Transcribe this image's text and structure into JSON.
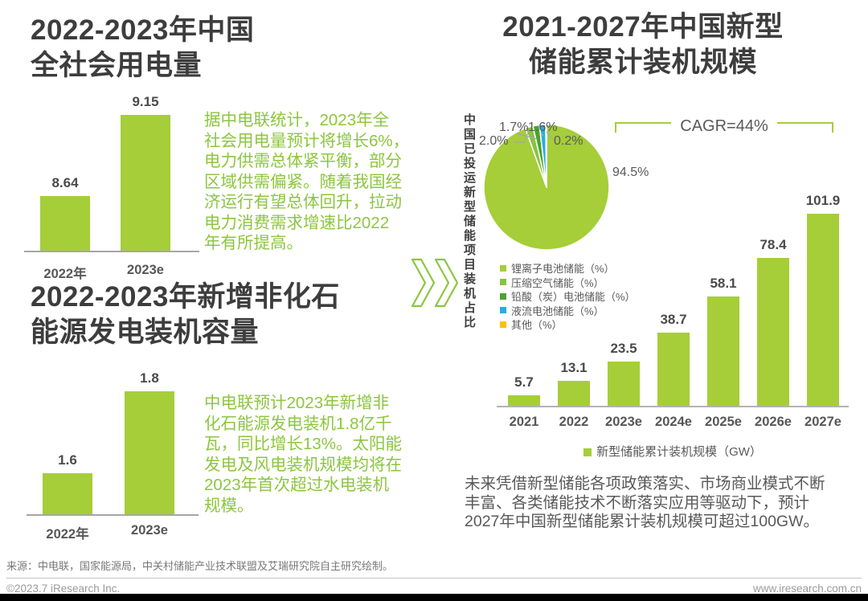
{
  "left": {
    "chart1": {
      "title": "2022-2023年中国\n全社会用电量",
      "note": "据中电联统计，2023年全\n社会用电量预计将增长6%，\n电力供需总体紧平衡，部分\n区域供需偏紧。随着我国经\n济运行有望总体回升，拉动\n电力消费需求增速比2022\n年有所提高。"
    },
    "chart2": {
      "title": "2022-2023年新增非化石\n能源发电装机容量",
      "note": "中电联预计2023年新增非\n化石能源发电装机1.8亿千\n瓦，同比增长13%。太阳能\n发电及风电装机规模均将在\n2023年首次超过水电装机\n规模。"
    }
  },
  "right": {
    "title": "2021-2027年中国新型\n储能累计装机规模",
    "note": "未来凭借新型储能各项政策落实、市场商业模式不断\n丰富、各类储能技术不断落实应用等驱动下，预计\n2027年中国新型储能累计装机规模可超过100GW。"
  },
  "footer": {
    "source": "来源：中电联，国家能源局，中关村储能产业技术联盟及艾瑞研究院自主研究绘制。",
    "copyright": "©2023.7 iResearch Inc.",
    "website": "www.iresearch.com.cn"
  },
  "colors": {
    "accent_green": "#a5ce39",
    "note_green": "#8cc63f",
    "title_gray": "#3d3d3d",
    "label_gray": "#595959"
  },
  "chart_data": [
    {
      "type": "bar",
      "title": "2022-2023年中国全社会用电量",
      "categories": [
        "2022年",
        "2023e"
      ],
      "values": [
        8.64,
        9.15
      ],
      "ylim": [
        8.3,
        9.15
      ],
      "bar_color": "#a5ce39"
    },
    {
      "type": "bar",
      "title": "2022-2023年新增非化石能源发电装机容量",
      "categories": [
        "2022年",
        "2023e"
      ],
      "values": [
        1.6,
        1.8
      ],
      "ylim": [
        1.5,
        1.8
      ],
      "bar_color": "#a5ce39"
    },
    {
      "type": "pie",
      "title": "中国已投运新型储能项目装机占比",
      "labels": [
        "锂离子电池储能（%）",
        "压缩空气储能（%）",
        "铅酸（炭）电池储能（%）",
        "液流电池储能（%）",
        "其他（%）"
      ],
      "values": [
        94.5,
        2.0,
        1.7,
        1.6,
        0.2
      ],
      "colors": [
        "#a5ce39",
        "#86c440",
        "#4ca32e",
        "#29abe2",
        "#ffc000"
      ],
      "legend_position": "below-left"
    },
    {
      "type": "bar",
      "title": "2021-2027年中国新型储能累计装机规模",
      "categories": [
        "2021",
        "2022",
        "2023e",
        "2024e",
        "2025e",
        "2026e",
        "2027e"
      ],
      "values": [
        5.7,
        13.1,
        23.5,
        38.7,
        58.1,
        78.4,
        101.9
      ],
      "ylim": [
        0,
        101.9
      ],
      "legend": "新型储能累计装机规模（GW）",
      "annotation": "CAGR=44%",
      "bar_color": "#a5ce39"
    }
  ]
}
